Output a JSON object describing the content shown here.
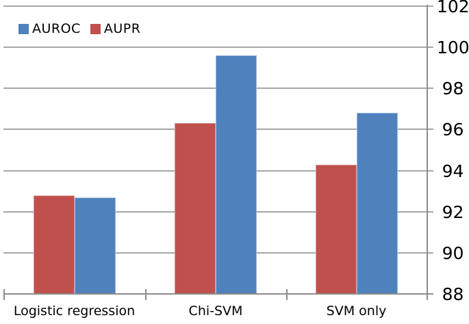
{
  "figure": {
    "background": "#FFFFFF",
    "gridline_color": "#A6A6A6",
    "axis_line_color": "#8C8C8C",
    "text_color": "#000000"
  },
  "legend": {
    "items": [
      {
        "label": "AUROC",
        "color": "#4F81BD"
      },
      {
        "label": "AUPR",
        "color": "#C0504D"
      }
    ]
  },
  "chart_data": {
    "type": "bar",
    "title": "",
    "xlabel": "",
    "ylabel": "",
    "categories": [
      "Logistic regression",
      "Chi-SVM",
      "SVM only"
    ],
    "series": [
      {
        "name": "AUROC",
        "color": "#4F81BD",
        "border_color": "#9DB9DE",
        "values": [
          92.7,
          99.6,
          96.8
        ]
      },
      {
        "name": "AUPR",
        "color": "#C0504D",
        "border_color": "#D99795",
        "values": [
          92.8,
          96.3,
          94.3
        ]
      }
    ],
    "bar_order": [
      "AUPR",
      "AUROC"
    ],
    "ylim": [
      88,
      102
    ],
    "yticks": [
      88,
      90,
      92,
      94,
      96,
      98,
      100,
      102
    ],
    "ytick_labels": [
      "88",
      "90",
      "92",
      "94",
      "96",
      "98",
      "100",
      "102"
    ],
    "y_axis_side": "right",
    "grid": true,
    "legend_position": "top-left"
  }
}
